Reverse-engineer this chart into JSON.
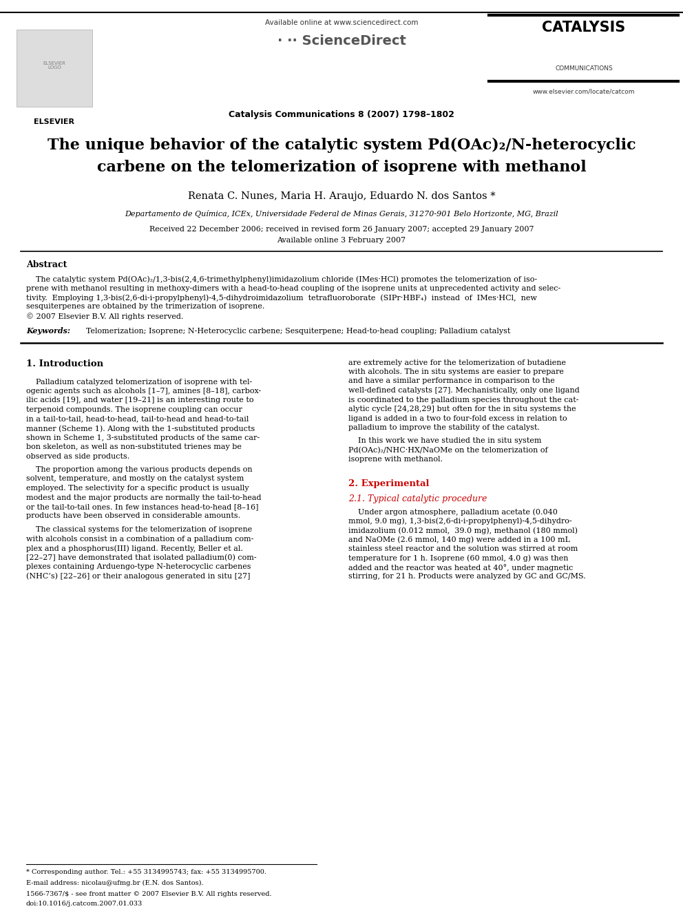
{
  "title_line1": "The unique behavior of the catalytic system Pd(OAc)₂/N-heterocyclic",
  "title_line2": "carbene on the telomerization of isoprene with methanol",
  "authors": "Renata C. Nunes, Maria H. Araujo, Eduardo N. dos Santos *",
  "affiliation": "Departamento de Química, ICEx, Universidade Federal de Minas Gerais, 31270-901 Belo Horizonte, MG, Brazil",
  "received": "Received 22 December 2006; received in revised form 26 January 2007; accepted 29 January 2007",
  "available": "Available online 3 February 2007",
  "journal_header": "Catalysis Communications 8 (2007) 1798–1802",
  "sd_header": "Available online at www.sciencedirect.com",
  "catalysis_title": "CATALYSIS",
  "catalysis_sub": "COMMUNICATIONS",
  "elsevier_text": "ELSEVIER",
  "website": "www.elsevier.com/locate/catcom",
  "abstract_title": "Abstract",
  "keywords_label": "Keywords:",
  "keywords_text": "  Telomerization; Isoprene; N-Heterocyclic carbene; Sesquiterpene; Head-to-head coupling; Palladium catalyst",
  "section1_title": "1. Introduction",
  "section2_title": "2. Experimental",
  "section21_title": "2.1. Typical catalytic procedure",
  "footnote_star": "* Corresponding author. Tel.: +55 3134995743; fax: +55 3134995700.",
  "footnote_email": "E-mail address: nicolau@ufmg.br (E.N. dos Santos).",
  "footnote_issn": "1566-7367/$ - see front matter © 2007 Elsevier B.V. All rights reserved.",
  "footnote_doi": "doi:10.1016/j.catcom.2007.01.033",
  "bg_color": "#ffffff"
}
